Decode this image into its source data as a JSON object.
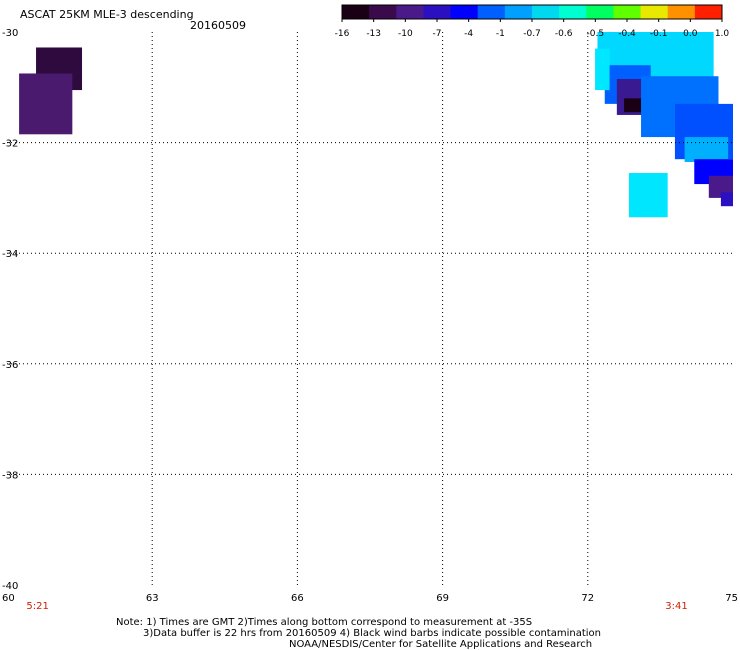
{
  "header": {
    "title": "ASCAT 25KM MLE-3 descending",
    "date": "20160509"
  },
  "colorbar": {
    "labels": [
      "-16",
      "-13",
      "-10",
      "-7",
      "-4",
      "-1",
      "-0.7",
      "-0.6",
      "-0.5",
      "-0.4",
      "-0.1",
      "0.0",
      "1.0"
    ],
    "colors": [
      "#1a0014",
      "#3a0a4a",
      "#4a1a8a",
      "#2a10c0",
      "#0000ff",
      "#0060ff",
      "#00a0ff",
      "#00d8f0",
      "#00ffd0",
      "#00ff60",
      "#60ff00",
      "#e8e800",
      "#ff9000",
      "#ff2000"
    ]
  },
  "chart_data": {
    "type": "heatmap",
    "title": "ASCAT 25KM MLE-3 descending 20160509",
    "xlim": [
      60,
      75
    ],
    "ylim": [
      -40,
      -30
    ],
    "x_ticks": [
      60,
      63,
      66,
      69,
      72,
      75
    ],
    "x_tick_labels": [
      "60",
      "63",
      "66",
      "69",
      "72",
      "75"
    ],
    "y_ticks": [
      -30,
      -32,
      -34,
      -36,
      -38,
      -40
    ],
    "y_tick_labels": [
      "-30",
      "-32",
      "-34",
      "-36",
      "-38",
      "-40"
    ],
    "grid": true,
    "time_labels": [
      {
        "lon": 60.4,
        "text": "5:21",
        "color": "#cc2200"
      },
      {
        "lon": 73.6,
        "text": "3:41",
        "color": "#cc2200"
      }
    ],
    "cells": [
      {
        "lon0": 60.6,
        "lon1": 61.55,
        "lat0": -31.05,
        "lat1": -30.28,
        "color": "#2e0a3e"
      },
      {
        "lon0": 60.25,
        "lon1": 61.35,
        "lat0": -31.85,
        "lat1": -30.75,
        "color": "#4a1a6e"
      },
      {
        "lon0": 72.2,
        "lon1": 74.6,
        "lat0": -30.9,
        "lat1": -30.0,
        "color": "#00d8ff"
      },
      {
        "lon0": 72.35,
        "lon1": 73.3,
        "lat0": -31.3,
        "lat1": -30.6,
        "color": "#0060ff"
      },
      {
        "lon0": 72.15,
        "lon1": 72.45,
        "lat0": -31.05,
        "lat1": -30.3,
        "color": "#00e8ff"
      },
      {
        "lon0": 72.6,
        "lon1": 73.3,
        "lat0": -31.5,
        "lat1": -30.85,
        "color": "#3a1a90"
      },
      {
        "lon0": 72.75,
        "lon1": 73.2,
        "lat0": -31.45,
        "lat1": -31.2,
        "color": "#1a0014"
      },
      {
        "lon0": 73.1,
        "lon1": 74.7,
        "lat0": -31.9,
        "lat1": -30.8,
        "color": "#0070ff"
      },
      {
        "lon0": 73.8,
        "lon1": 75.0,
        "lat0": -32.3,
        "lat1": -31.3,
        "color": "#0050ff"
      },
      {
        "lon0": 74.0,
        "lon1": 74.9,
        "lat0": -32.35,
        "lat1": -31.9,
        "color": "#00b0ff"
      },
      {
        "lon0": 74.2,
        "lon1": 75.0,
        "lat0": -32.75,
        "lat1": -32.3,
        "color": "#0000ff"
      },
      {
        "lon0": 74.5,
        "lon1": 75.0,
        "lat0": -33.0,
        "lat1": -32.6,
        "color": "#4a1a8a"
      },
      {
        "lon0": 74.75,
        "lon1": 75.0,
        "lat0": -33.15,
        "lat1": -32.9,
        "color": "#2a10c0"
      },
      {
        "lon0": 72.85,
        "lon1": 73.65,
        "lat0": -33.35,
        "lat1": -32.55,
        "color": "#00e6ff"
      }
    ]
  },
  "footer": {
    "note_line1": "Note: 1) Times are GMT 2)Times along bottom correspond to measurement at -35S",
    "note_line2": "3)Data buffer is 22 hrs from 20160509 4) Black wind barbs indicate possible contamination",
    "credit": "NOAA/NESDIS/Center for Satellite Applications and Research"
  }
}
